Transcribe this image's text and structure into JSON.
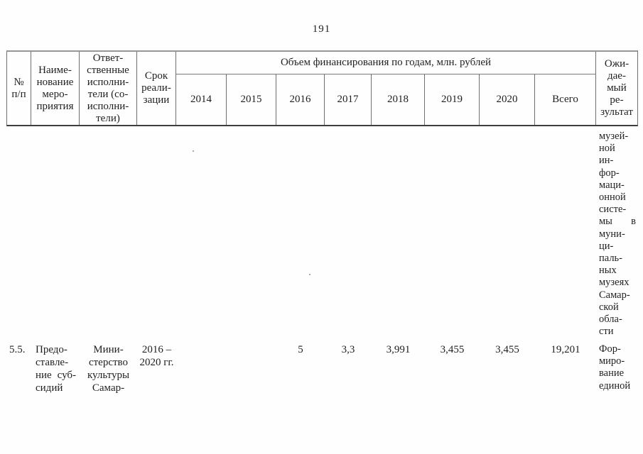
{
  "page": {
    "number": "191"
  },
  "table": {
    "header": {
      "num_lines": [
        "№",
        "п/п"
      ],
      "name_lines": [
        "Наиме-",
        "нование",
        "меро-",
        "приятия"
      ],
      "executors_lines": [
        "Ответ-",
        "ственные",
        "исполни-",
        "тели (со-",
        "исполни-",
        "тели)"
      ],
      "period_lines": [
        "Срок",
        "реали-",
        "зации"
      ],
      "finance_group_label": "Объем финансирования по годам, млн. рублей",
      "years": [
        "2014",
        "2015",
        "2016",
        "2017",
        "2018",
        "2019",
        "2020",
        "Всего"
      ],
      "result_lines": [
        "Ожи-",
        "дае-",
        "мый",
        "ре-",
        "зультат"
      ]
    },
    "body": {
      "carryover_result_lines": [
        "музей-",
        "ной",
        "ин-",
        "фор-",
        "маци-",
        "онной",
        "систе-",
        "мы в",
        "муни-",
        "ци-",
        "паль-",
        "ных",
        "музеях",
        "Самар-",
        "ской",
        "обла-",
        "сти"
      ],
      "row_5_5": {
        "num": "5.5.",
        "name_lines": [
          "Предо-",
          "ставле-",
          "ние суб-",
          "сидий"
        ],
        "executors_lines": [
          "Мини-",
          "стерство",
          "культуры",
          "Самар-"
        ],
        "period_lines": [
          "2016 –",
          "2020 гг."
        ],
        "values": [
          "",
          "",
          "5",
          "3,3",
          "3,991",
          "3,455",
          "3,455",
          "19,201"
        ],
        "result_lines": [
          "Фор-",
          "миро-",
          "вание",
          "единой"
        ]
      }
    }
  }
}
